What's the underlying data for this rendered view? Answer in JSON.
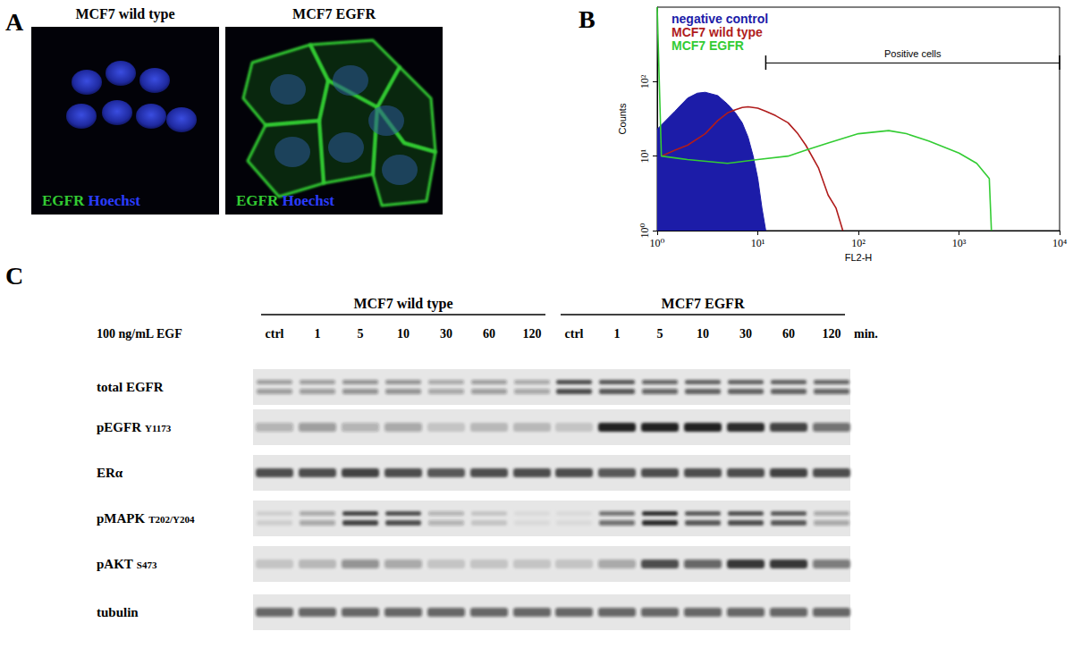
{
  "panel_A": {
    "letter": "A",
    "images": [
      {
        "title": "MCF7 wild type",
        "stain": [
          {
            "text": "EGFR",
            "color": "#33cc33"
          },
          {
            "text": "Hoechst",
            "color": "#2a3cff"
          }
        ],
        "egfr_signal": false
      },
      {
        "title": "MCF7 EGFR",
        "stain": [
          {
            "text": "EGFR",
            "color": "#33cc33"
          },
          {
            "text": "Hoechst",
            "color": "#2a3cff"
          }
        ],
        "egfr_signal": true
      }
    ]
  },
  "chart_data": {
    "type": "line",
    "title": "B",
    "xlabel": "FL2-H",
    "ylabel": "Counts",
    "log": true,
    "grid": false,
    "legend": "upper left",
    "xlim": [
      1,
      10000
    ],
    "xticks": [
      {
        "value": 1,
        "label": "10⁰"
      },
      {
        "value": 10,
        "label": "10¹"
      },
      {
        "value": 100,
        "label": "10²"
      },
      {
        "value": 1000,
        "label": "10³"
      },
      {
        "value": 10000,
        "label": "10⁴"
      }
    ],
    "ylim": [
      1,
      1000
    ],
    "yticks": [
      {
        "value": 1,
        "label": "10⁰"
      },
      {
        "value": 10,
        "label": "10¹"
      },
      {
        "value": 100,
        "label": "10²"
      }
    ],
    "series": [
      {
        "name": "negative control",
        "color": "#1c1ca8",
        "type": "area",
        "x": [
          1,
          1.5,
          2,
          2.5,
          3,
          4,
          5,
          6,
          7,
          8,
          9,
          10,
          11,
          12
        ],
        "values": [
          23,
          40,
          60,
          70,
          72,
          65,
          50,
          38,
          28,
          18,
          10,
          5,
          2,
          1
        ]
      },
      {
        "name": "MCF7 wild type",
        "color": "#b01c1c",
        "type": "line",
        "x": [
          1.1,
          1.5,
          2,
          3,
          4,
          5,
          6,
          7,
          8,
          10,
          12,
          15,
          20,
          25,
          30,
          40,
          50,
          60,
          70
        ],
        "values": [
          10,
          12,
          14,
          20,
          30,
          38,
          42,
          45,
          46,
          44,
          40,
          35,
          28,
          20,
          14,
          7,
          3,
          2,
          1
        ]
      },
      {
        "name": "MCF7 EGFR",
        "color": "#33cc33",
        "type": "line",
        "x": [
          1,
          1.1,
          2,
          5,
          10,
          20,
          30,
          50,
          100,
          200,
          300,
          500,
          1000,
          1500,
          2000,
          2100
        ],
        "values": [
          1000,
          10,
          9,
          8,
          9,
          10,
          12,
          15,
          20,
          22,
          20,
          16,
          11,
          8,
          5,
          1
        ]
      }
    ],
    "annotations": [
      {
        "text": "Positive cells",
        "x": [
          12,
          10000
        ],
        "y": 180
      }
    ]
  },
  "panel_C": {
    "letter": "C",
    "treatment": "100 ng/mL EGF",
    "unit": "min.",
    "groups": [
      {
        "label": "MCF7 wild type",
        "lanes": [
          "ctrl",
          "1",
          "5",
          "10",
          "30",
          "60",
          "120"
        ]
      },
      {
        "label": "MCF7 EGFR",
        "lanes": [
          "ctrl",
          "1",
          "5",
          "10",
          "30",
          "60",
          "120"
        ]
      }
    ],
    "rows": [
      {
        "name": "total EGFR",
        "doublet": true,
        "intensity": [
          0.35,
          0.35,
          0.4,
          0.4,
          0.3,
          0.35,
          0.3,
          0.75,
          0.7,
          0.6,
          0.65,
          0.65,
          0.65,
          0.6
        ]
      },
      {
        "name": "pEGFR",
        "site": "Y1173",
        "doublet": false,
        "intensity": [
          0.25,
          0.35,
          0.25,
          0.3,
          0.15,
          0.2,
          0.2,
          0.15,
          0.95,
          0.95,
          0.95,
          0.9,
          0.8,
          0.55
        ]
      },
      {
        "name": "ERα",
        "doublet": false,
        "intensity": [
          0.75,
          0.75,
          0.8,
          0.75,
          0.7,
          0.75,
          0.75,
          0.75,
          0.7,
          0.75,
          0.75,
          0.75,
          0.8,
          0.75
        ]
      },
      {
        "name": "pMAPK",
        "site": "T202/Y204",
        "doublet": true,
        "intensity": [
          0.1,
          0.3,
          0.8,
          0.75,
          0.25,
          0.15,
          0.05,
          0.05,
          0.55,
          0.9,
          0.7,
          0.75,
          0.7,
          0.3
        ]
      },
      {
        "name": "pAKT",
        "site": "S473",
        "doublet": false,
        "intensity": [
          0.15,
          0.2,
          0.4,
          0.3,
          0.15,
          0.15,
          0.15,
          0.15,
          0.3,
          0.75,
          0.6,
          0.85,
          0.85,
          0.5
        ]
      },
      {
        "name": "tubulin",
        "doublet": false,
        "intensity": [
          0.6,
          0.6,
          0.6,
          0.6,
          0.6,
          0.6,
          0.6,
          0.6,
          0.6,
          0.6,
          0.6,
          0.6,
          0.6,
          0.6
        ]
      }
    ]
  }
}
